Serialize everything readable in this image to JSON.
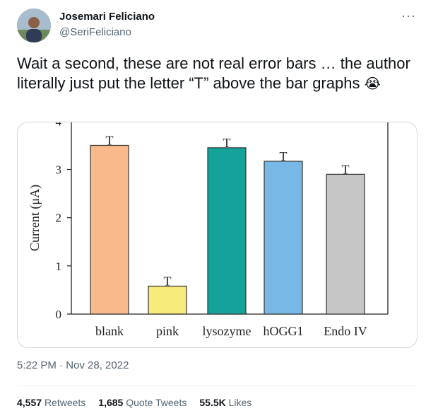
{
  "author": {
    "name": "Josemari Feliciano",
    "handle": "@SeriFeliciano"
  },
  "tweet": {
    "text": "Wait a second, these are not real error bars … the author literally just put the letter “T” above the bar graphs",
    "emoji": "😭",
    "timestamp": "5:22 PM · Nov 28, 2022"
  },
  "stats": {
    "retweets_count": "4,557",
    "retweets_label": "Retweets",
    "quotes_count": "1,685",
    "quotes_label": "Quote Tweets",
    "likes_count": "55.5K",
    "likes_label": "Likes"
  },
  "icons": {
    "more": "more-horizontal-icon"
  },
  "chart_data": {
    "type": "bar",
    "categories": [
      "blank",
      "pink",
      "lysozyme",
      "hOGG1",
      "Endo IV"
    ],
    "values": [
      3.5,
      0.58,
      3.45,
      3.17,
      2.9
    ],
    "errors": [
      0.15,
      0.15,
      0.15,
      0.15,
      0.15
    ],
    "error_marker": "T",
    "colors": [
      "#f9b98a",
      "#f5ea7a",
      "#14a29b",
      "#78b8e6",
      "#c6c6c6"
    ],
    "ylabel": "Current (μA)",
    "yticks": [
      "0",
      "1",
      "2",
      "3",
      "4"
    ],
    "ylim": [
      0,
      4.05
    ]
  }
}
